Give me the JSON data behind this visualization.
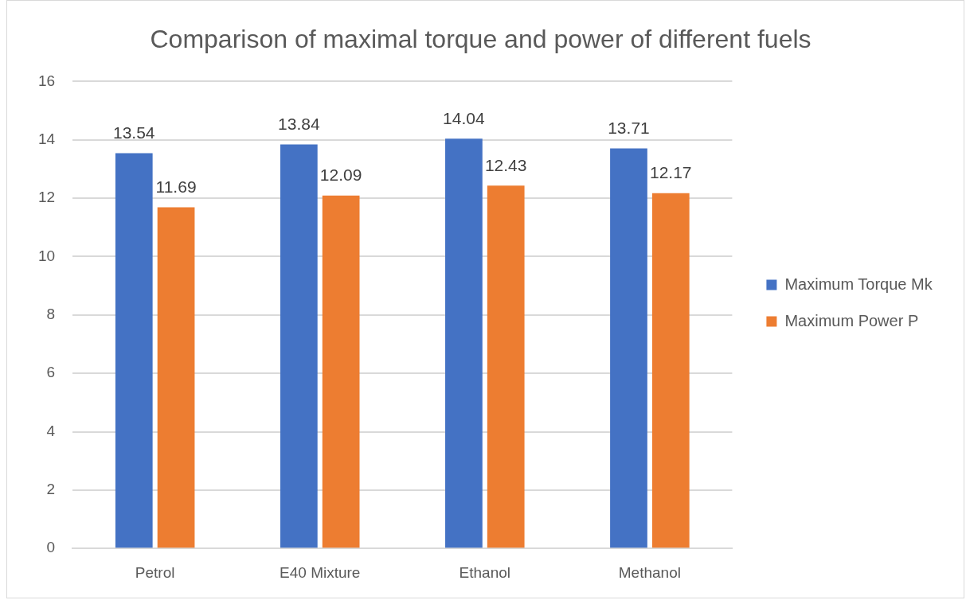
{
  "chart_data": {
    "type": "bar",
    "title": "Comparison of maximal torque and power of different fuels",
    "categories": [
      "Petrol",
      "E40 Mixture",
      "Ethanol",
      "Methanol"
    ],
    "series": [
      {
        "name": "Maximum Torque Mk",
        "color": "#4472c4",
        "values": [
          13.54,
          13.84,
          14.04,
          13.71
        ]
      },
      {
        "name": "Maximum Power P",
        "color": "#ed7d31",
        "values": [
          11.69,
          12.09,
          12.43,
          12.17
        ]
      }
    ],
    "ylim": [
      0,
      16
    ],
    "yticks": [
      0,
      2,
      4,
      6,
      8,
      10,
      12,
      14,
      16
    ],
    "grid": "y",
    "legend": "right",
    "data_labels": true
  }
}
